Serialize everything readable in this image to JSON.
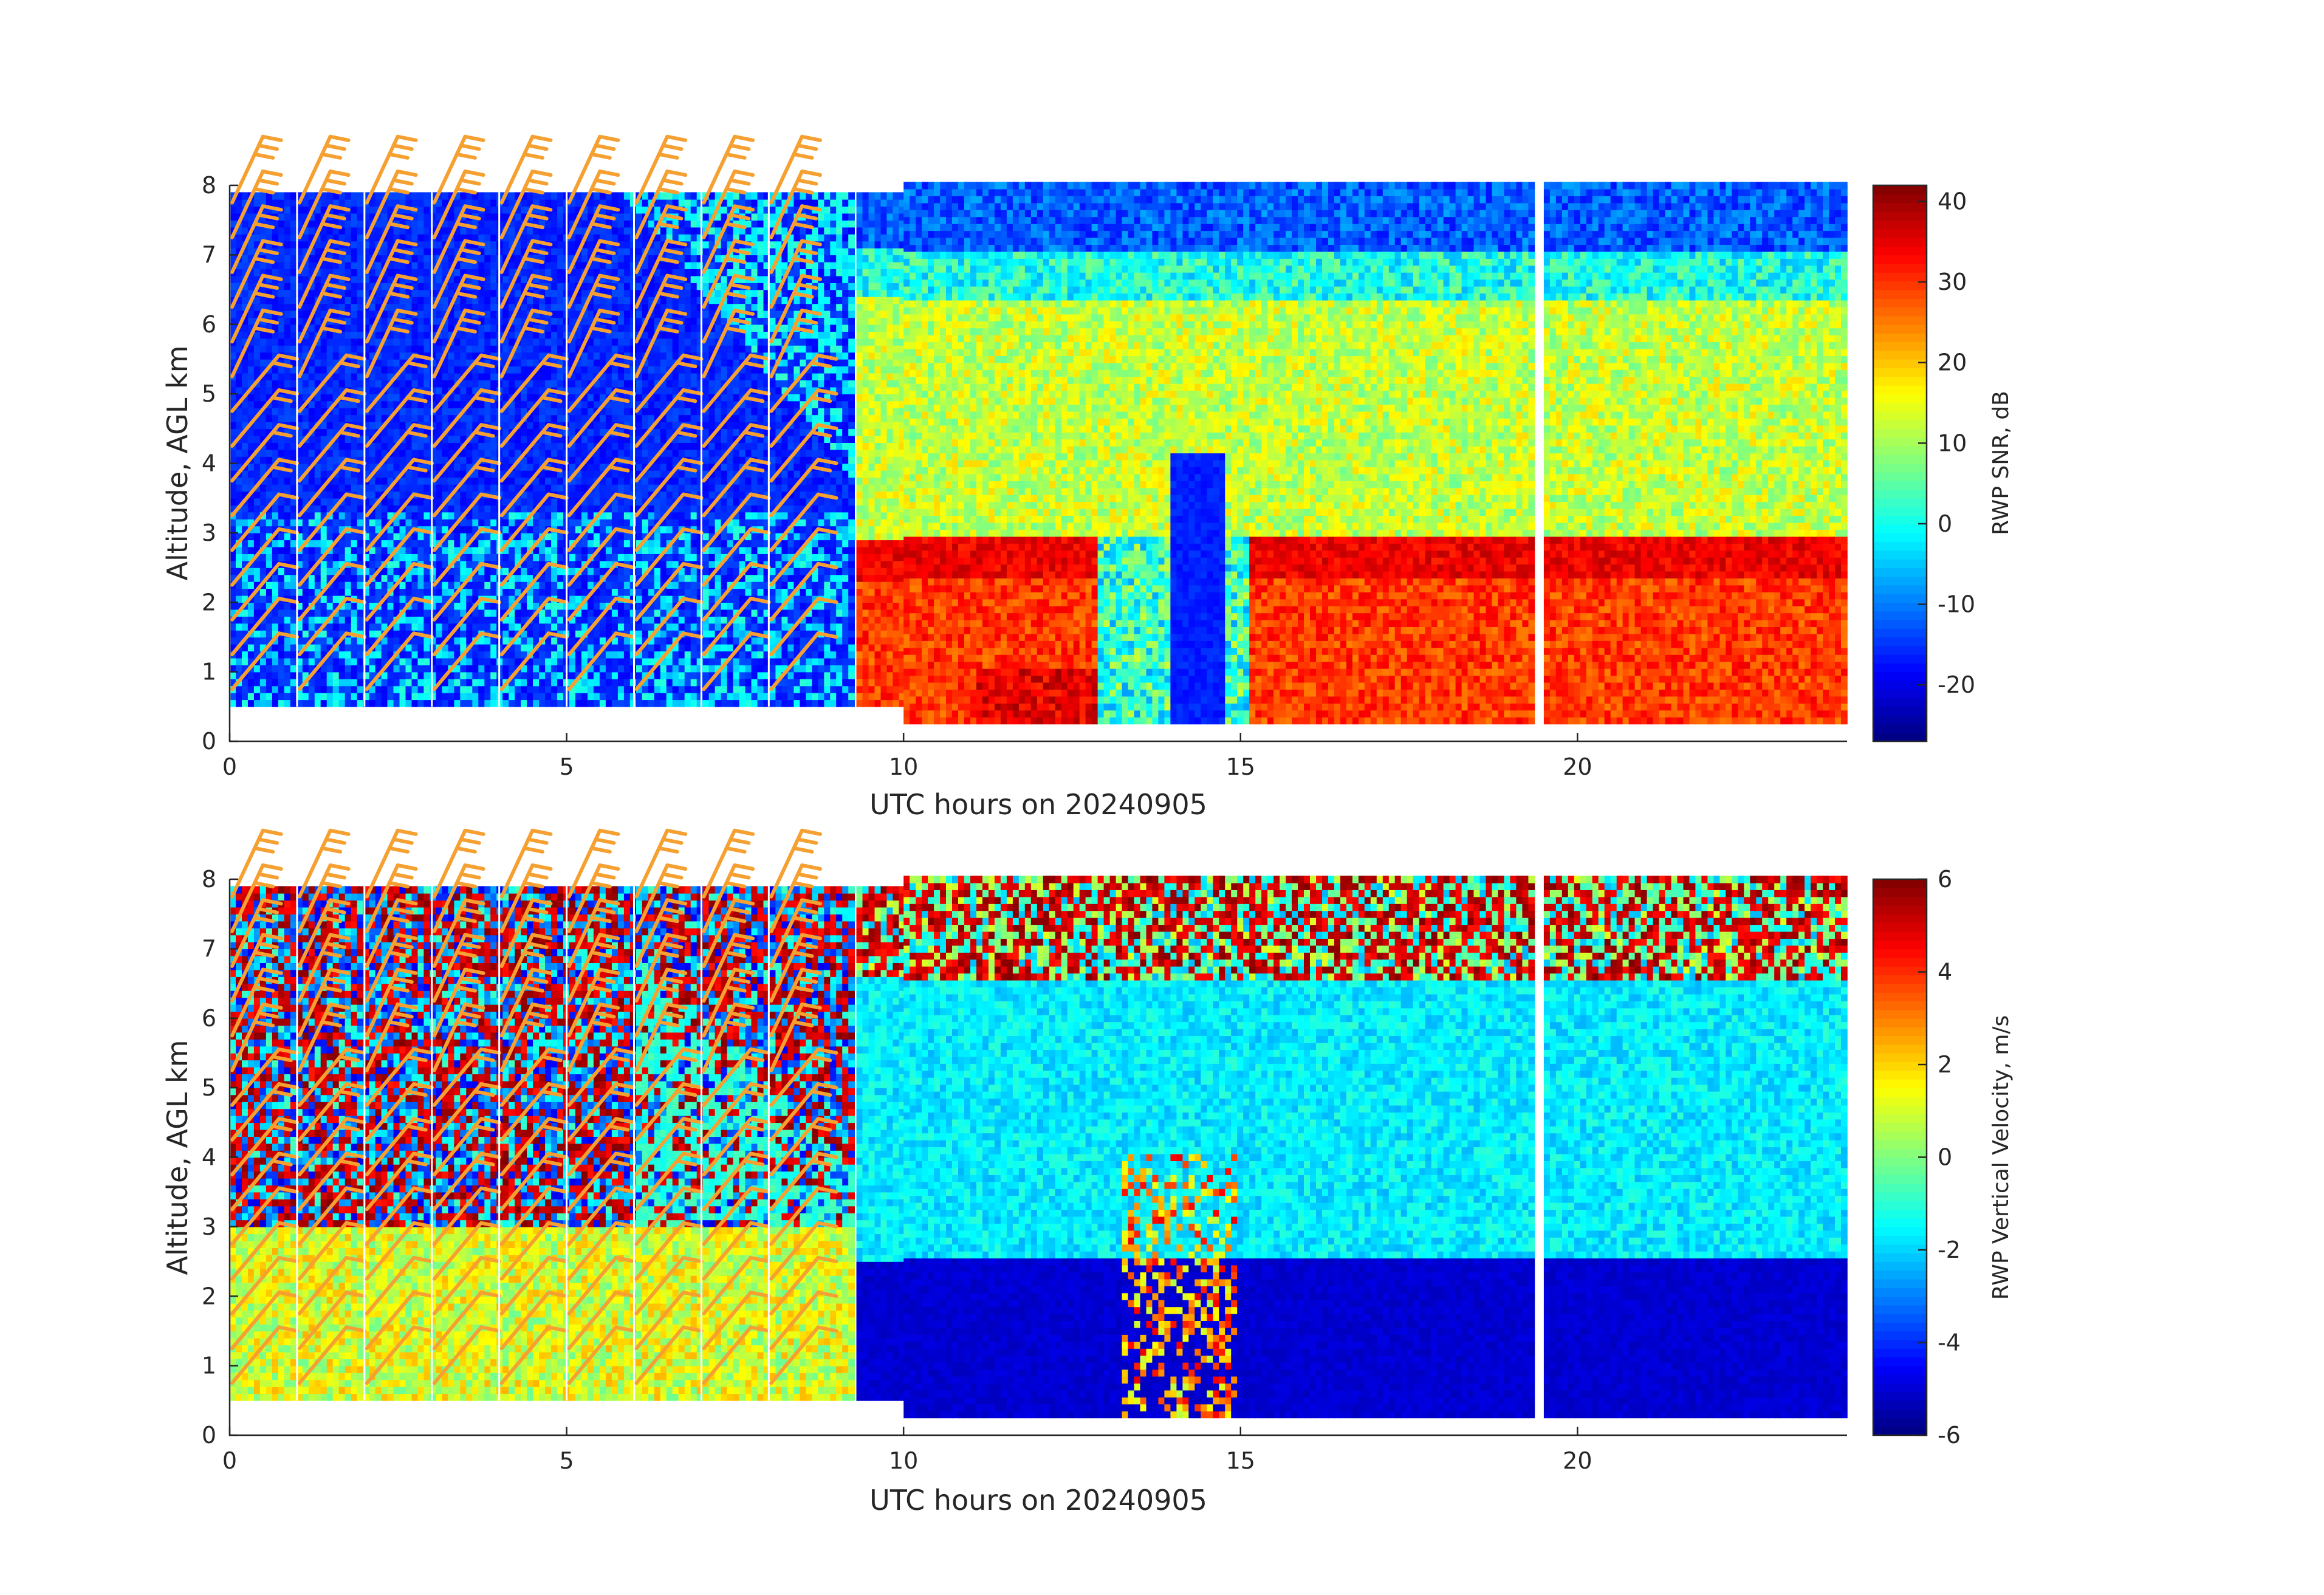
{
  "chart_data": [
    {
      "type": "heatmap",
      "panel": "top",
      "variable": "SNR",
      "xlabel": "UTC hours on 20240905",
      "ylabel": "Altitude, AGL km",
      "xlim": [
        0,
        24
      ],
      "ylim": [
        0,
        8
      ],
      "xticks": [
        0,
        5,
        10,
        15,
        20
      ],
      "yticks": [
        0,
        1,
        2,
        3,
        4,
        5,
        6,
        7,
        8
      ],
      "colorbar": {
        "label": "RWP SNR, dB",
        "range": [
          -27,
          42
        ],
        "ticks": [
          -20,
          -10,
          0,
          10,
          20,
          30,
          40
        ],
        "colormap": "jet"
      },
      "data_segments": [
        {
          "x_start": 0.0,
          "x_end": 9.2,
          "y_bottom": 0.5,
          "y_top": 7.9,
          "mode": "low"
        },
        {
          "x_start": 9.3,
          "x_end": 9.95,
          "y_bottom": 0.5,
          "y_top": 7.9,
          "mode": "high"
        },
        {
          "x_start": 10.0,
          "x_end": 19.3,
          "y_bottom": 0.25,
          "y_top": 8.0,
          "mode": "high"
        },
        {
          "x_start": 19.5,
          "x_end": 24.0,
          "y_bottom": 0.25,
          "y_top": 8.0,
          "mode": "high"
        }
      ],
      "bright_layer_km": [
        2.3,
        2.9
      ],
      "clear_column": {
        "x_start": 13.9,
        "x_end": 14.7,
        "y_top": 4.1
      }
    },
    {
      "type": "heatmap",
      "panel": "bottom",
      "variable": "vertical_velocity",
      "xlabel": "UTC hours on 20240905",
      "ylabel": "Altitude, AGL km",
      "xlim": [
        0,
        24
      ],
      "ylim": [
        0,
        8
      ],
      "xticks": [
        0,
        5,
        10,
        15,
        20
      ],
      "yticks": [
        0,
        1,
        2,
        3,
        4,
        5,
        6,
        7,
        8
      ],
      "colorbar": {
        "label": "RWP Vertical Velocity, m/s",
        "range": [
          -6,
          6
        ],
        "ticks": [
          -6,
          -4,
          -2,
          0,
          2,
          4,
          6
        ],
        "colormap": "jet"
      },
      "data_segments": [
        {
          "x_start": 0.0,
          "x_end": 9.2,
          "y_bottom": 0.5,
          "y_top": 7.9,
          "mode": "low"
        },
        {
          "x_start": 9.3,
          "x_end": 9.95,
          "y_bottom": 0.5,
          "y_top": 7.9,
          "mode": "high"
        },
        {
          "x_start": 10.0,
          "x_end": 19.3,
          "y_bottom": 0.25,
          "y_top": 8.0,
          "mode": "high"
        },
        {
          "x_start": 19.5,
          "x_end": 24.0,
          "y_bottom": 0.25,
          "y_top": 8.0,
          "mode": "high"
        }
      ],
      "rain_layer_top_km": 2.5
    }
  ],
  "wind_barbs": {
    "color": "#f5a030",
    "profile_times_h": [
      0,
      1,
      2,
      3,
      4,
      5,
      6,
      7,
      8
    ],
    "altitudes_km": [
      0.75,
      1.25,
      1.75,
      2.25,
      2.75,
      3.25,
      3.75,
      4.25,
      4.75,
      5.25,
      5.75,
      6.25,
      6.75,
      7.25,
      7.75
    ]
  }
}
